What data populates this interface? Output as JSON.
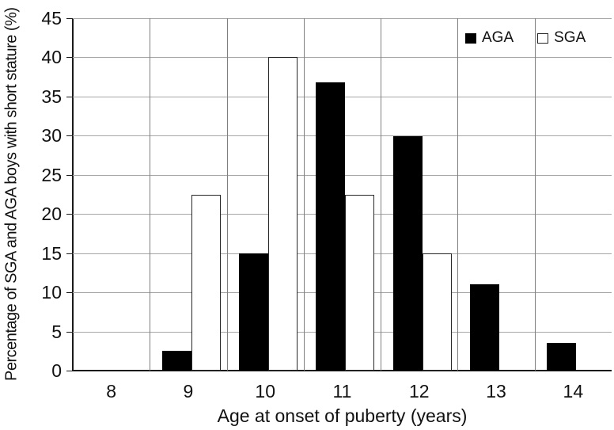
{
  "chart_data": {
    "type": "bar",
    "title": "",
    "xlabel": "Age at onset of puberty (years)",
    "ylabel": "Percentage of SGA and AGA boys with short stature (%)",
    "categories": [
      "8",
      "9",
      "10",
      "11",
      "12",
      "13",
      "14"
    ],
    "series": [
      {
        "name": "AGA",
        "style": "filled-black",
        "values": [
          0,
          2.5,
          15,
          36.8,
          29.9,
          11,
          3.5
        ]
      },
      {
        "name": "SGA",
        "style": "outlined-white",
        "values": [
          0,
          22.5,
          40,
          22.5,
          15,
          0,
          0
        ]
      }
    ],
    "ylim": [
      0,
      45
    ],
    "yticks": [
      0,
      5,
      10,
      15,
      20,
      25,
      30,
      35,
      40,
      45
    ],
    "grid": "horizontal gridlines at every 5, vertical separators at category boundaries",
    "legend_position": "top-right inside plot area"
  },
  "colors": {
    "aga_bar": "#000000",
    "sga_bar_fill": "#ffffff",
    "bar_outline": "#262626",
    "gridline": "#a6a6a6",
    "category_separator": "#7f7f7f",
    "axis_line": "#1a1a1a",
    "text": "#111111",
    "background": "#ffffff"
  }
}
